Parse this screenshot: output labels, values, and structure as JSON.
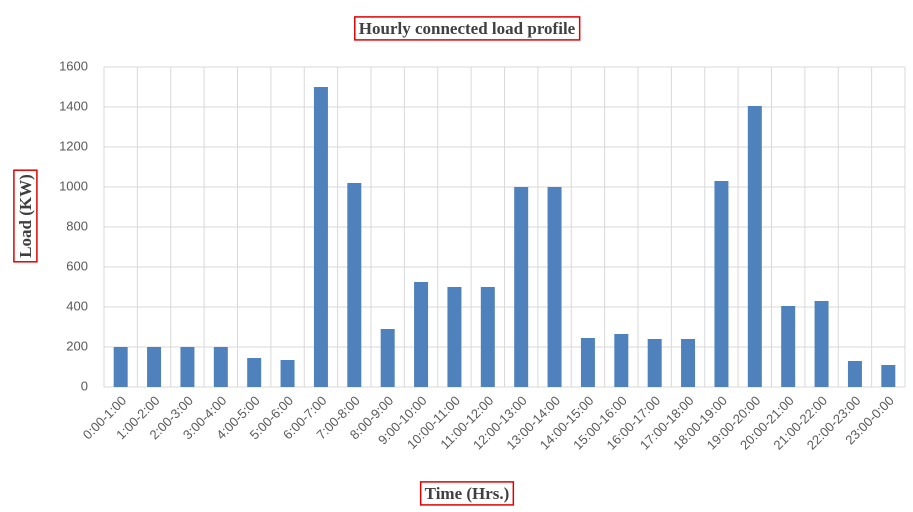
{
  "chart_data": {
    "type": "bar",
    "title": "Hourly connected load profile",
    "x_label": "Time (Hrs.)",
    "y_label": "Load (KW)",
    "categories": [
      "0:00-1:00",
      "1:00-2:00",
      "2:00-3:00",
      "3:00-4:00",
      "4:00-5:00",
      "5:00-6:00",
      "6:00-7:00",
      "7:00-8:00",
      "8:00-9:00",
      "9:00-10:00",
      "10:00-11:00",
      "11:00-12:00",
      "12:00-13:00",
      "13:00-14:00",
      "14:00-15:00",
      "15:00-16:00",
      "16:00-17:00",
      "17:00-18:00",
      "18:00-19:00",
      "19:00-20:00",
      "20:00-21:00",
      "21:00-22:00",
      "22:00-23:00",
      "23:00-0:00"
    ],
    "values": [
      200,
      200,
      200,
      200,
      145,
      135,
      1500,
      1020,
      290,
      525,
      500,
      500,
      1000,
      1000,
      245,
      265,
      240,
      240,
      1030,
      1405,
      405,
      430,
      130,
      110
    ],
    "color": "#4f81bd",
    "ylim": [
      0,
      1600
    ],
    "yticks": [
      0,
      200,
      400,
      600,
      800,
      1000,
      1200,
      1400,
      1600
    ],
    "grid": true
  }
}
